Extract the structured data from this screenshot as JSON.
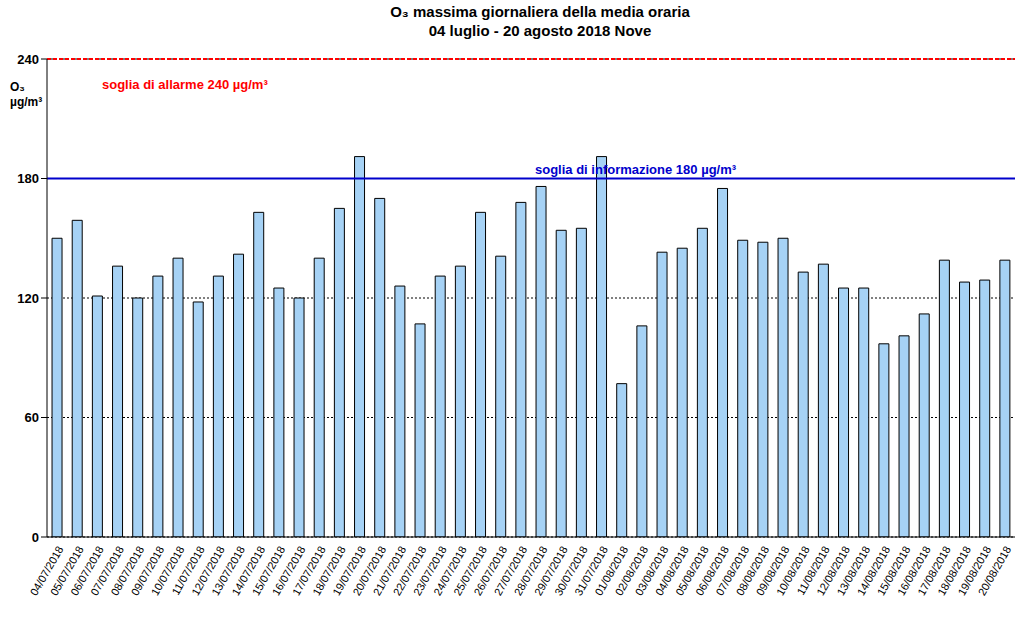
{
  "chart_data": {
    "type": "bar",
    "title": "O₃ massima giornaliera della media oraria",
    "subtitle": "04 luglio - 20 agosto 2018 Nove",
    "y_label": "O₃ µg/m³",
    "categories": [
      "04/07/2018",
      "05/07/2018",
      "06/07/2018",
      "07/07/2018",
      "08/07/2018",
      "09/07/2018",
      "10/07/2018",
      "11/07/2018",
      "12/07/2018",
      "13/07/2018",
      "14/07/2018",
      "15/07/2018",
      "16/07/2018",
      "17/07/2018",
      "18/07/2018",
      "19/07/2018",
      "20/07/2018",
      "21/07/2018",
      "22/07/2018",
      "23/07/2018",
      "24/07/2018",
      "25/07/2018",
      "26/07/2018",
      "27/07/2018",
      "28/07/2018",
      "29/07/2018",
      "30/07/2018",
      "31/07/2018",
      "01/08/2018",
      "02/08/2018",
      "03/08/2018",
      "04/08/2018",
      "05/08/2018",
      "06/08/2018",
      "07/08/2018",
      "08/08/2018",
      "09/08/2018",
      "10/08/2018",
      "11/08/2018",
      "12/08/2018",
      "13/08/2018",
      "14/08/2018",
      "15/08/2018",
      "16/08/2018",
      "17/08/2018",
      "18/08/2018",
      "19/08/2018",
      "20/08/2018"
    ],
    "values": [
      150,
      159,
      121,
      136,
      120,
      131,
      140,
      118,
      131,
      142,
      163,
      125,
      120,
      140,
      165,
      191,
      170,
      126,
      107,
      131,
      136,
      163,
      141,
      168,
      176,
      154,
      155,
      191,
      77,
      106,
      143,
      145,
      155,
      175,
      149,
      148,
      150,
      133,
      137,
      125,
      125,
      97,
      101,
      112,
      139,
      128,
      129,
      139
    ],
    "color": "#a6d2f5",
    "ylim": [
      0,
      240
    ],
    "yticks": [
      0,
      60,
      120,
      180,
      240
    ],
    "grid": true,
    "annotations": [
      {
        "text": "soglia di allarme 240 µg/m³",
        "value": 240,
        "color": "#ff0000",
        "line_style": "dashed"
      },
      {
        "text": "soglia di informazione 180 µg/m³",
        "value": 180,
        "color": "#0000cc",
        "line_style": "solid"
      }
    ]
  }
}
